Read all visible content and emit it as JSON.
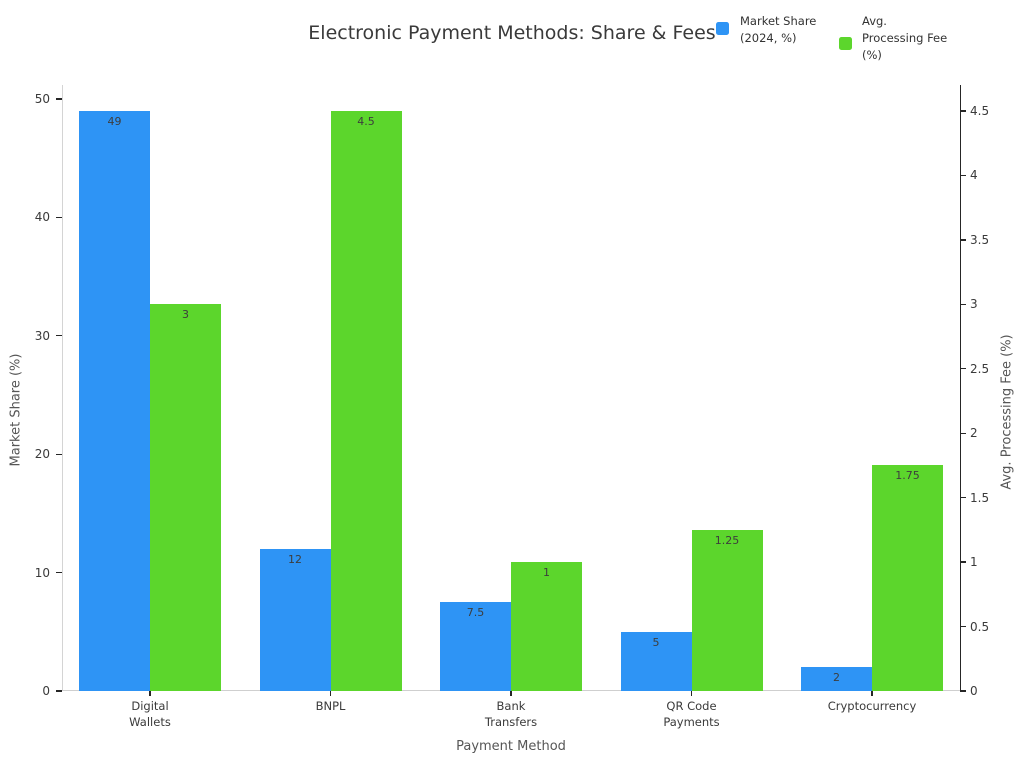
{
  "title": "Electronic Payment Methods: Share & Fees",
  "legend": {
    "items": [
      {
        "name": "market-share",
        "label": "Market Share\n(2024, %)",
        "color": "#2e94f5"
      },
      {
        "name": "processing-fee",
        "label": "Avg.\nProcessing Fee\n(%)",
        "color": "#5cd62c"
      }
    ]
  },
  "chart_data": {
    "type": "bar",
    "title": "Electronic Payment Methods: Share & Fees",
    "categories": [
      "Digital\nWallets",
      "BNPL",
      "Bank\nTransfers",
      "QR Code\nPayments",
      "Cryptocurrency"
    ],
    "series": [
      {
        "name": "Market Share (2024, %)",
        "axis": "left",
        "color": "#2e94f5",
        "values": [
          49,
          12,
          7.5,
          5,
          2
        ]
      },
      {
        "name": "Avg. Processing Fee (%)",
        "axis": "right",
        "color": "#5cd62c",
        "values": [
          3,
          4.5,
          1,
          1.25,
          1.75
        ]
      }
    ],
    "xlabel": "Payment Method",
    "ylabel_left": "Market Share (%)",
    "ylabel_right": "Avg. Processing Fee (%)",
    "ylim_left": [
      0,
      50
    ],
    "ylim_right": [
      0,
      4.5
    ],
    "yticks_left": [
      0,
      10,
      20,
      30,
      40,
      50
    ],
    "yticks_right": [
      0,
      0.5,
      1,
      1.5,
      2,
      2.5,
      3,
      3.5,
      4,
      4.5
    ],
    "bar_value_labels": true,
    "grid": false,
    "legend_position": "top-right"
  }
}
